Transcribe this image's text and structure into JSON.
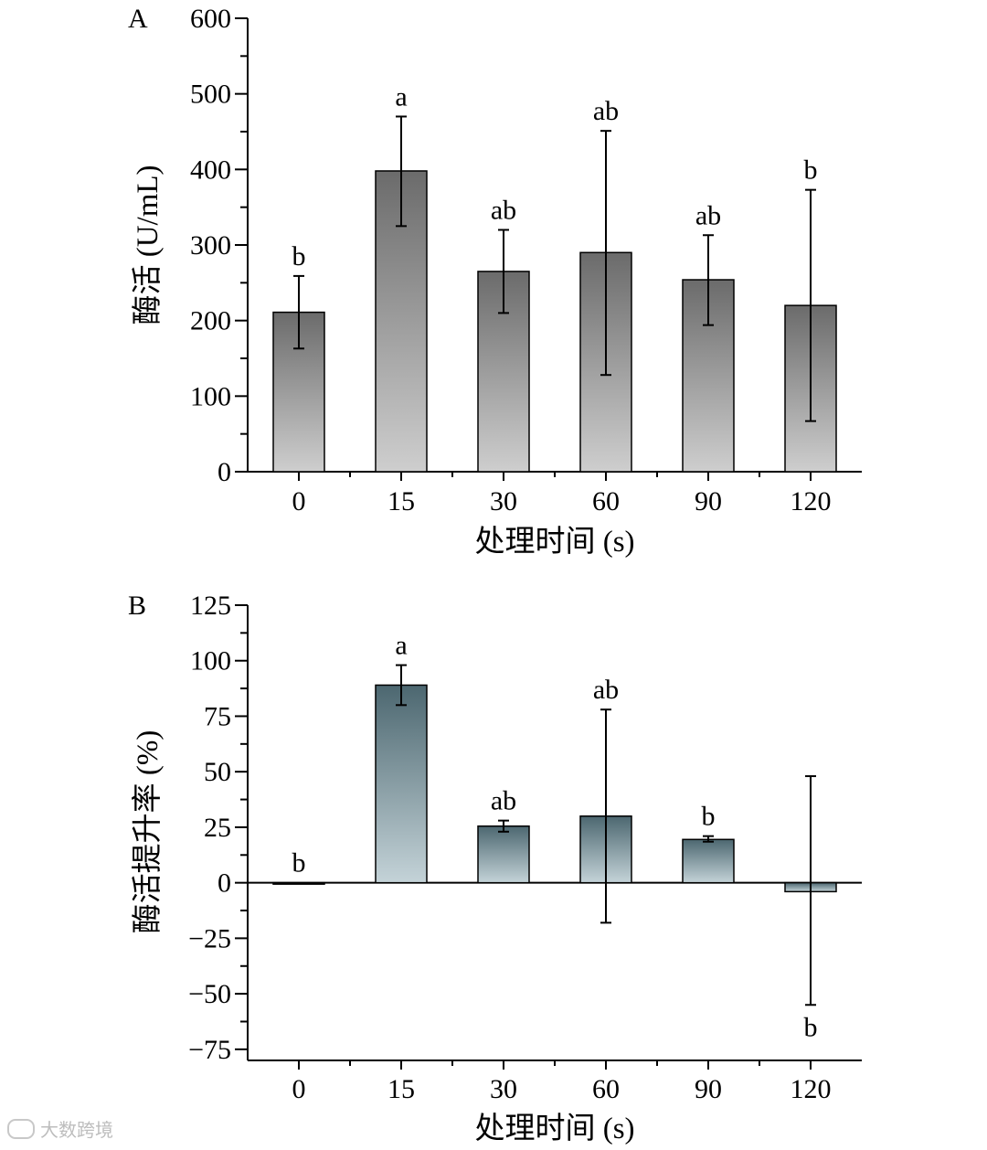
{
  "chart_data": [
    {
      "panel": "A",
      "type": "bar",
      "categories": [
        "0",
        "15",
        "30",
        "60",
        "90",
        "120"
      ],
      "values": [
        211,
        398,
        265,
        290,
        254,
        220
      ],
      "error_low": [
        163,
        325,
        210,
        128,
        194,
        67
      ],
      "error_high": [
        259,
        470,
        320,
        451,
        313,
        373
      ],
      "significance": [
        "b",
        "a",
        "ab",
        "ab",
        "ab",
        "b"
      ],
      "xlabel": "处理时间 (s)",
      "ylabel": "酶活 (U/mL)",
      "ylim": [
        0,
        600
      ],
      "yticks": [
        0,
        100,
        200,
        300,
        400,
        500,
        600
      ],
      "gradient": {
        "top": "#6b6b6b",
        "bottom": "#cecece"
      }
    },
    {
      "panel": "B",
      "type": "bar",
      "categories": [
        "0",
        "15",
        "30",
        "60",
        "90",
        "120"
      ],
      "values": [
        0,
        89,
        25.5,
        30,
        19.5,
        -4
      ],
      "error_low": [
        0,
        80,
        23,
        -18,
        18.5,
        -55
      ],
      "error_high": [
        0,
        98,
        28,
        78,
        21,
        48
      ],
      "significance": [
        "b",
        "a",
        "ab",
        "ab",
        "b",
        "b"
      ],
      "xlabel": "处理时间 (s)",
      "ylabel": "酶活提升率 (%)",
      "ylim": [
        -80,
        125
      ],
      "yticks": [
        -75,
        -50,
        -25,
        0,
        25,
        50,
        75,
        100,
        125
      ],
      "gradient": {
        "top": "#4c6770",
        "bottom": "#c4d3d8"
      }
    }
  ],
  "watermark": "大数跨境"
}
